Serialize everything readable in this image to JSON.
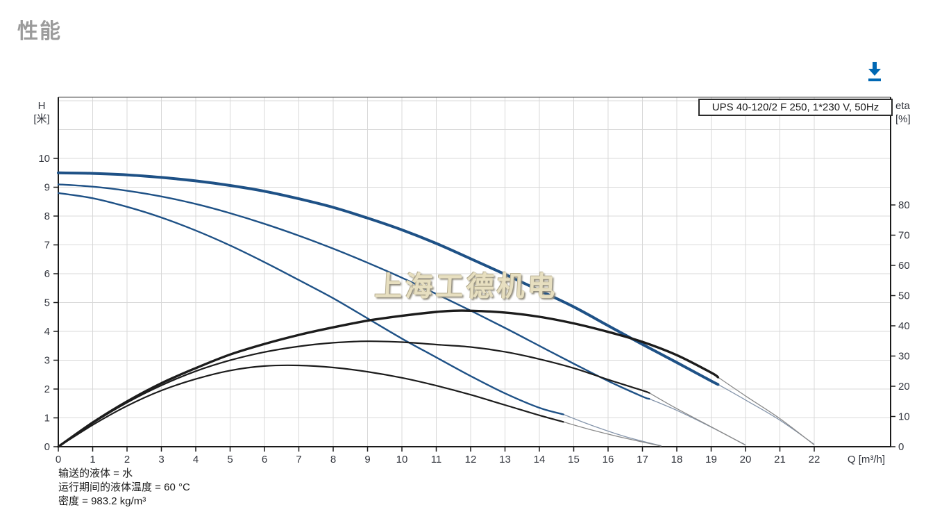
{
  "page": {
    "title": "性能"
  },
  "icons": {
    "download": {
      "name": "download-icon",
      "color": "#0068b4"
    }
  },
  "footnotes": {
    "line1": "输送的液体 = 水",
    "line2": "运行期间的液体温度 = 60 °C",
    "line3": "密度 = 983.2 kg/m³"
  },
  "chart_data": {
    "type": "line",
    "curve_box_label": "UPS 40-120/2 F 250, 1*230 V, 50Hz",
    "watermark": "上海工德机电",
    "grid": true,
    "legend_position": "none",
    "axes": {
      "x": {
        "label": "Q [m³/h]",
        "min": 0,
        "max": 22,
        "ticks": [
          0,
          1,
          2,
          3,
          4,
          5,
          6,
          7,
          8,
          9,
          10,
          11,
          12,
          13,
          14,
          15,
          16,
          17,
          18,
          19,
          20,
          21,
          22
        ]
      },
      "y_left": {
        "label_line1": "H",
        "label_line2": "[米]",
        "min": 0,
        "max": 10,
        "ticks": [
          0,
          1,
          2,
          3,
          4,
          5,
          6,
          7,
          8,
          9,
          10
        ]
      },
      "y_right": {
        "label_line1": "eta",
        "label_line2": "[%]",
        "min": 0,
        "max": 80,
        "ticks": [
          0,
          10,
          20,
          30,
          40,
          50,
          60,
          70,
          80
        ]
      }
    },
    "colors": {
      "curve_blue": "#1e5186",
      "curve_black": "#1c1c1c",
      "ext_blue": "#8595ab",
      "ext_black": "#8a8a8a",
      "grid": "#d8d8d8",
      "axis": "#1a1a1a",
      "tick_text": "#33363e"
    },
    "series": [
      {
        "name": "head-speed-3",
        "y_axis": "left",
        "width": 4,
        "points": [
          [
            0,
            9.5
          ],
          [
            1,
            9.48
          ],
          [
            2,
            9.43
          ],
          [
            3,
            9.34
          ],
          [
            4,
            9.22
          ],
          [
            5,
            9.06
          ],
          [
            6,
            8.86
          ],
          [
            7,
            8.6
          ],
          [
            8,
            8.3
          ],
          [
            9,
            7.93
          ],
          [
            10,
            7.52
          ],
          [
            11,
            7.05
          ],
          [
            12,
            6.52
          ],
          [
            13,
            5.98
          ],
          [
            14,
            5.42
          ],
          [
            15,
            4.85
          ],
          [
            16,
            4.2
          ],
          [
            17,
            3.55
          ],
          [
            18,
            2.92
          ],
          [
            19,
            2.28
          ],
          [
            19.2,
            2.16
          ]
        ],
        "extension": [
          [
            19.2,
            2.16
          ],
          [
            20,
            1.62
          ],
          [
            21,
            0.92
          ],
          [
            22,
            0.08
          ]
        ]
      },
      {
        "name": "head-speed-2",
        "y_axis": "left",
        "width": 2.4,
        "points": [
          [
            0,
            9.1
          ],
          [
            1,
            9.02
          ],
          [
            2,
            8.88
          ],
          [
            3,
            8.68
          ],
          [
            4,
            8.42
          ],
          [
            5,
            8.1
          ],
          [
            6,
            7.73
          ],
          [
            7,
            7.32
          ],
          [
            8,
            6.87
          ],
          [
            9,
            6.38
          ],
          [
            10,
            5.86
          ],
          [
            11,
            5.3
          ],
          [
            12,
            4.72
          ],
          [
            13,
            4.12
          ],
          [
            14,
            3.5
          ],
          [
            15,
            2.88
          ],
          [
            16,
            2.28
          ],
          [
            17,
            1.74
          ],
          [
            17.2,
            1.66
          ]
        ],
        "extension": [
          [
            17.2,
            1.66
          ],
          [
            18,
            1.26
          ],
          [
            19,
            0.68
          ],
          [
            20,
            0.06
          ]
        ]
      },
      {
        "name": "head-speed-1",
        "y_axis": "left",
        "width": 2.4,
        "points": [
          [
            0,
            8.8
          ],
          [
            1,
            8.62
          ],
          [
            2,
            8.32
          ],
          [
            3,
            7.95
          ],
          [
            4,
            7.5
          ],
          [
            5,
            6.98
          ],
          [
            6,
            6.4
          ],
          [
            7,
            5.78
          ],
          [
            8,
            5.15
          ],
          [
            9,
            4.45
          ],
          [
            10,
            3.75
          ],
          [
            11,
            3.1
          ],
          [
            12,
            2.45
          ],
          [
            13,
            1.85
          ],
          [
            14,
            1.35
          ],
          [
            14.7,
            1.12
          ]
        ],
        "extension": [
          [
            14.7,
            1.12
          ],
          [
            15.5,
            0.75
          ],
          [
            16.5,
            0.35
          ],
          [
            17.55,
            0.03
          ]
        ]
      },
      {
        "name": "eta-speed-3",
        "y_axis": "right",
        "width": 3.4,
        "points": [
          [
            0,
            0
          ],
          [
            1,
            8
          ],
          [
            2,
            15
          ],
          [
            3,
            21
          ],
          [
            4,
            26
          ],
          [
            5,
            30.5
          ],
          [
            6,
            34
          ],
          [
            7,
            37
          ],
          [
            8,
            39.5
          ],
          [
            9,
            41.7
          ],
          [
            10,
            43.3
          ],
          [
            11,
            44.6
          ],
          [
            11.5,
            45
          ],
          [
            12,
            45
          ],
          [
            13,
            44.4
          ],
          [
            14,
            43
          ],
          [
            15,
            40.8
          ],
          [
            16,
            38
          ],
          [
            17,
            34.7
          ],
          [
            18,
            30.3
          ],
          [
            19,
            24.5
          ],
          [
            19.2,
            23
          ]
        ],
        "extension": [
          [
            19.2,
            23
          ],
          [
            20,
            16.8
          ],
          [
            21,
            9.3
          ],
          [
            22,
            0.6
          ]
        ]
      },
      {
        "name": "eta-speed-2",
        "y_axis": "right",
        "width": 2.2,
        "points": [
          [
            0,
            0
          ],
          [
            1,
            7.8
          ],
          [
            2,
            14.6
          ],
          [
            3,
            20.3
          ],
          [
            4,
            25
          ],
          [
            5,
            28.6
          ],
          [
            6,
            31.3
          ],
          [
            7,
            33.2
          ],
          [
            8,
            34.4
          ],
          [
            9,
            34.9
          ],
          [
            10,
            34.6
          ],
          [
            11,
            33.8
          ],
          [
            12,
            33
          ],
          [
            13,
            31.4
          ],
          [
            14,
            29
          ],
          [
            15,
            26
          ],
          [
            16,
            22.2
          ],
          [
            17,
            18.6
          ],
          [
            17.2,
            17.8
          ]
        ],
        "extension": [
          [
            17.2,
            17.8
          ],
          [
            18,
            12.6
          ],
          [
            19,
            6.6
          ],
          [
            20,
            0.5
          ]
        ]
      },
      {
        "name": "eta-speed-1",
        "y_axis": "right",
        "width": 2.2,
        "points": [
          [
            0,
            0
          ],
          [
            1,
            7.2
          ],
          [
            2,
            13.5
          ],
          [
            3,
            18.6
          ],
          [
            4,
            22.4
          ],
          [
            5,
            25.2
          ],
          [
            6,
            26.7
          ],
          [
            7,
            26.9
          ],
          [
            8,
            26.2
          ],
          [
            9,
            24.8
          ],
          [
            10,
            22.8
          ],
          [
            11,
            20.2
          ],
          [
            12,
            17.2
          ],
          [
            13,
            13.8
          ],
          [
            14,
            10.4
          ],
          [
            14.7,
            8.2
          ]
        ],
        "extension": [
          [
            14.7,
            8.2
          ],
          [
            15.5,
            5.6
          ],
          [
            16.5,
            2.8
          ],
          [
            17.55,
            0.2
          ]
        ]
      }
    ]
  }
}
